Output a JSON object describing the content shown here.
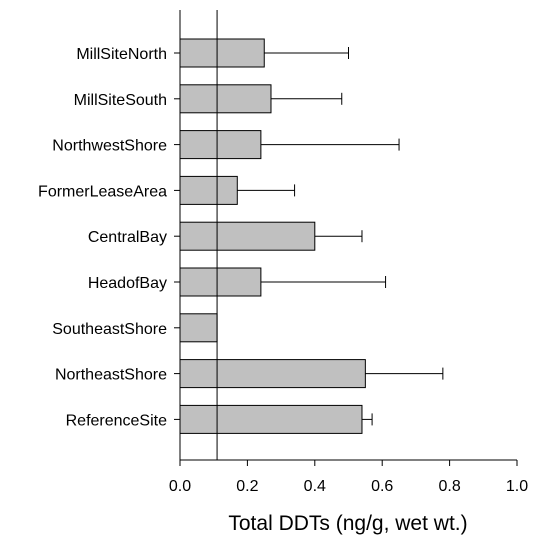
{
  "chart_data": {
    "type": "bar",
    "orientation": "horizontal",
    "title": "",
    "xlabel": "Total DDTs (ng/g, wet wt.)",
    "ylabel": "",
    "xlim": [
      0,
      1.0
    ],
    "x_ticks": [
      0.0,
      0.2,
      0.4,
      0.6,
      0.8,
      1.0
    ],
    "x_tick_labels": [
      "0.0",
      "0.2",
      "0.4",
      "0.6",
      "0.8",
      "1.0"
    ],
    "categories": [
      "MillSiteNorth",
      "MillSiteSouth",
      "NorthwestShore",
      "FormerLeaseArea",
      "CentralBay",
      "HeadofBay",
      "SoutheastShore",
      "NortheastShore",
      "ReferenceSite"
    ],
    "values": [
      0.25,
      0.27,
      0.24,
      0.17,
      0.4,
      0.24,
      0.11,
      0.55,
      0.54
    ],
    "error_upper": [
      0.5,
      0.48,
      0.65,
      0.34,
      0.54,
      0.61,
      0.11,
      0.78,
      0.57
    ],
    "reference_line_x": 0.11,
    "grid": false,
    "legend": "none",
    "colors": {
      "bar_fill": "#c0c0c0",
      "bar_stroke": "#000000",
      "axis": "#000000"
    }
  }
}
